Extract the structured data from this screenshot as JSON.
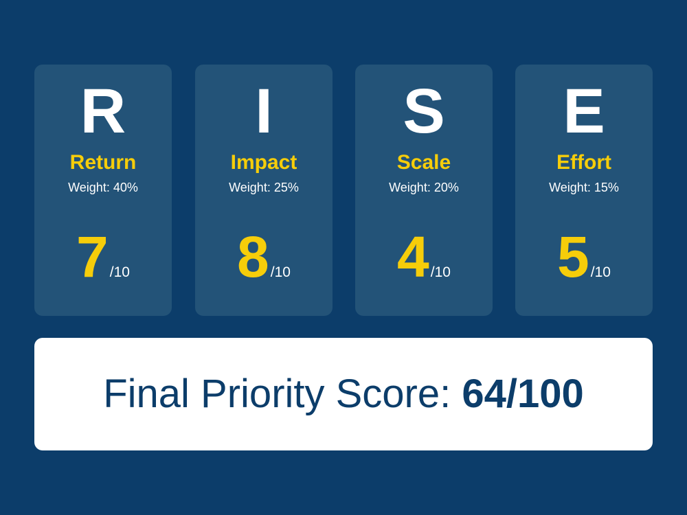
{
  "criteria": [
    {
      "letter": "R",
      "name": "Return",
      "weight": "Weight: 40%",
      "score": "7",
      "max": "/10"
    },
    {
      "letter": "I",
      "name": "Impact",
      "weight": "Weight: 25%",
      "score": "8",
      "max": "/10"
    },
    {
      "letter": "S",
      "name": "Scale",
      "weight": "Weight: 20%",
      "score": "4",
      "max": "/10"
    },
    {
      "letter": "E",
      "name": "Effort",
      "weight": "Weight: 15%",
      "score": "5",
      "max": "/10"
    }
  ],
  "final": {
    "label": "Final Priority Score:",
    "value": "64/100"
  },
  "colors": {
    "background": "#0c3d6a",
    "card": "#235378",
    "accent": "#f6cd0a",
    "text": "#ffffff",
    "final_bg": "#ffffff",
    "final_text": "#0c3d6a"
  }
}
